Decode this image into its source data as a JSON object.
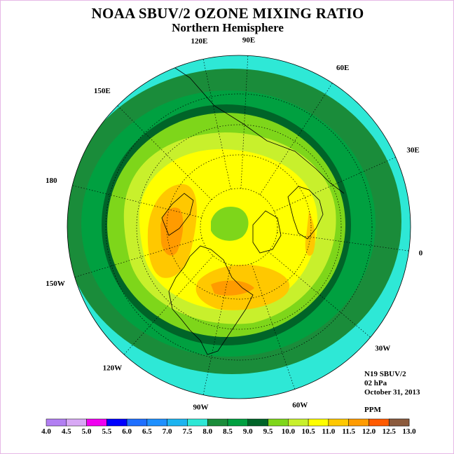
{
  "header": {
    "title": "NOAA SBUV/2 OZONE MIXING RATIO",
    "subtitle": "Northern Hemisphere"
  },
  "info": {
    "satellite": "N19 SBUV/2",
    "pressure": "02 hPa",
    "date": "October 31, 2013",
    "units": "PPM"
  },
  "longitude_labels": [
    "90E",
    "60E",
    "30E",
    "0",
    "30W",
    "60W",
    "90W",
    "120W",
    "150W",
    "180",
    "150E",
    "120E"
  ],
  "color_scale": {
    "ticks": [
      "4.0",
      "4.5",
      "5.0",
      "5.5",
      "6.0",
      "6.5",
      "7.0",
      "7.5",
      "8.0",
      "8.5",
      "9.0",
      "9.5",
      "10.0",
      "10.5",
      "11.0",
      "11.5",
      "12.0",
      "12.5",
      "13.0"
    ],
    "colors": [
      "#b27ff2",
      "#d8a8f5",
      "#f000f0",
      "#0000ff",
      "#1f6fff",
      "#1e90ff",
      "#1cb4f0",
      "#2ee8d6",
      "#1a8c3a",
      "#00a040",
      "#006428",
      "#7ed61a",
      "#c8f02c",
      "#ffff00",
      "#ffc800",
      "#ff9b00",
      "#ff5a00",
      "#e60000",
      "#8b5a3c"
    ]
  },
  "map_colors": {
    "c7_5": "#2ee8d6",
    "c8_0": "#1a8c3a",
    "c8_5": "#00a040",
    "c9_0": "#006428",
    "c9_5": "#7ed61a",
    "c10_0": "#c8f02c",
    "c10_5": "#ffff00",
    "c11_0": "#ffc800",
    "c11_5": "#ff9b00"
  }
}
